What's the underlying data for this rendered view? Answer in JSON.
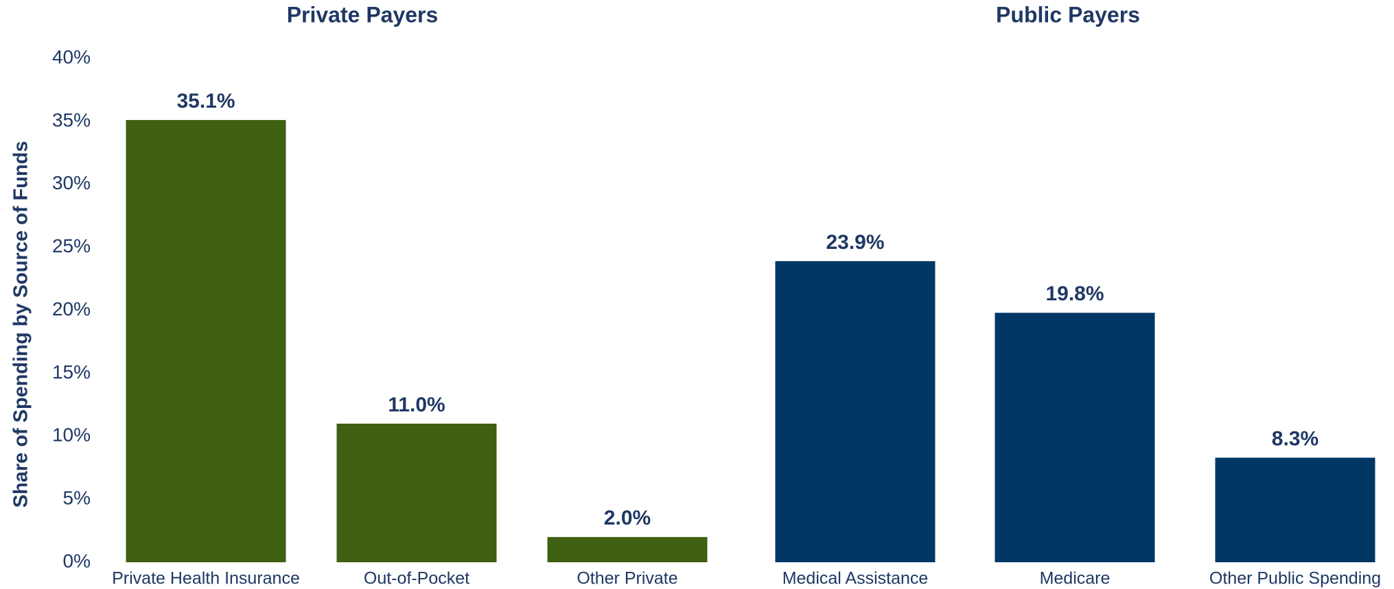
{
  "chart_data": {
    "type": "bar",
    "ylabel": "Share of Spending by Source of Funds",
    "ylim": [
      0,
      40
    ],
    "yticks": [
      {
        "value": 0,
        "label": "0%"
      },
      {
        "value": 5,
        "label": "5%"
      },
      {
        "value": 10,
        "label": "10%"
      },
      {
        "value": 15,
        "label": "15%"
      },
      {
        "value": 20,
        "label": "20%"
      },
      {
        "value": 25,
        "label": "25%"
      },
      {
        "value": 30,
        "label": "30%"
      },
      {
        "value": 35,
        "label": "35%"
      },
      {
        "value": 40,
        "label": "40%"
      }
    ],
    "groups": [
      {
        "name": "Private Payers",
        "color": "#3f5f12",
        "categories": [
          "Private Health Insurance",
          "Out-of-Pocket",
          "Other Private"
        ],
        "values": [
          35.1,
          11.0,
          2.0
        ],
        "value_labels": [
          "35.1%",
          "11.0%",
          "2.0%"
        ]
      },
      {
        "name": "Public Payers",
        "color": "#003764",
        "categories": [
          "Medical Assistance",
          "Medicare",
          "Other Public Spending"
        ],
        "values": [
          23.9,
          19.8,
          8.3
        ],
        "value_labels": [
          "23.9%",
          "19.8%",
          "8.3%"
        ]
      }
    ]
  }
}
